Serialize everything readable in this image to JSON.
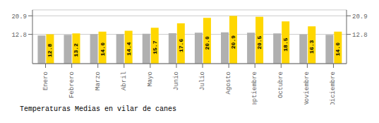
{
  "chart_data": {
    "type": "bar",
    "title": "Temperaturas Medias en vilar de canes",
    "categories": [
      "Enero",
      "Febrero",
      "Marzo",
      "Abril",
      "Mayo",
      "Junio",
      "Julio",
      "Agosto",
      "Septiembre",
      "Octubre",
      "Noviembre",
      "Diciembre"
    ],
    "series": [
      {
        "color": "#B0B0B0",
        "values": [
          12.3,
          12.6,
          12.9,
          12.9,
          13.1,
          13.3,
          13.5,
          13.7,
          13.5,
          13.2,
          12.8,
          12.6
        ]
      },
      {
        "color": "#FFD700",
        "values": [
          12.8,
          13.2,
          14.0,
          14.4,
          15.7,
          17.6,
          20.0,
          20.9,
          20.5,
          18.5,
          16.3,
          14.0
        ],
        "data_labels": true,
        "value_labels": [
          "12.8",
          "13.2",
          "14.0",
          "14.4",
          "15.7",
          "17.6",
          "20.0",
          "20.9",
          "20.5",
          "18.5",
          "16.3",
          "14.0"
        ]
      }
    ],
    "ylim": [
      0,
      23.5
    ],
    "yticks": [
      12.8,
      20.9
    ],
    "y2lim": [
      0,
      23.5
    ],
    "y2ticks": [
      12.8,
      20.9
    ],
    "grid": true
  }
}
